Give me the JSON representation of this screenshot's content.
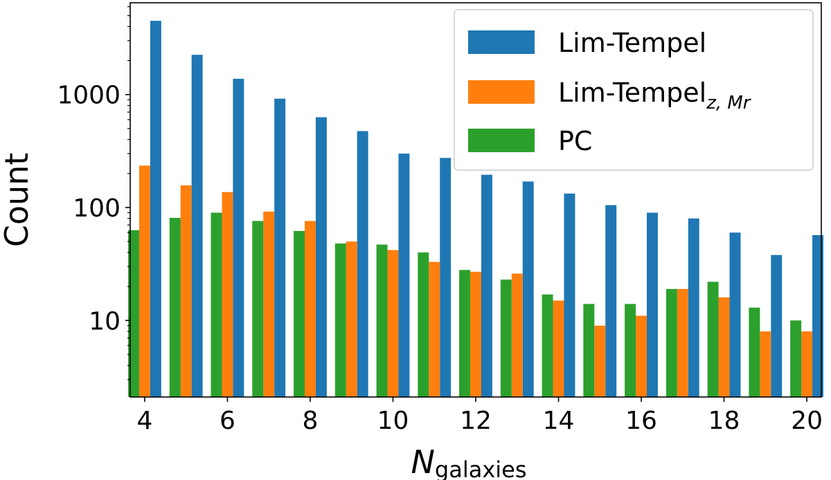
{
  "chart_data": {
    "type": "bar",
    "scale": "log",
    "xlabel": "N",
    "xlabel_subscript": "galaxies",
    "ylabel": "Count",
    "x": [
      4,
      5,
      6,
      7,
      8,
      9,
      10,
      11,
      12,
      13,
      14,
      15,
      16,
      17,
      18,
      19,
      20
    ],
    "xticks": [
      "4",
      "6",
      "8",
      "10",
      "12",
      "14",
      "16",
      "18",
      "20"
    ],
    "yticks": [
      "10",
      "100",
      "1000"
    ],
    "ylim": [
      2.1,
      6500
    ],
    "legend_position": "top-right",
    "series": [
      {
        "name": "Lim-Tempel",
        "name_subscript": "",
        "color": "#1f77b4",
        "values": [
          4500,
          2250,
          1380,
          920,
          630,
          475,
          300,
          275,
          195,
          170,
          133,
          105,
          90,
          80,
          60,
          38,
          57
        ]
      },
      {
        "name": "Lim-Tempel",
        "name_subscript": "z, Mr",
        "color": "#ff7f0e",
        "values": [
          235,
          157,
          137,
          92,
          76,
          50,
          42,
          33,
          27,
          26,
          15,
          9,
          11,
          19,
          16,
          8,
          8
        ]
      },
      {
        "name": "PC",
        "name_subscript": "",
        "color": "#2ca02c",
        "values": [
          63,
          81,
          90,
          76,
          62,
          48,
          47,
          40,
          28,
          23,
          17,
          14,
          14,
          19,
          22,
          13,
          10
        ]
      }
    ]
  }
}
